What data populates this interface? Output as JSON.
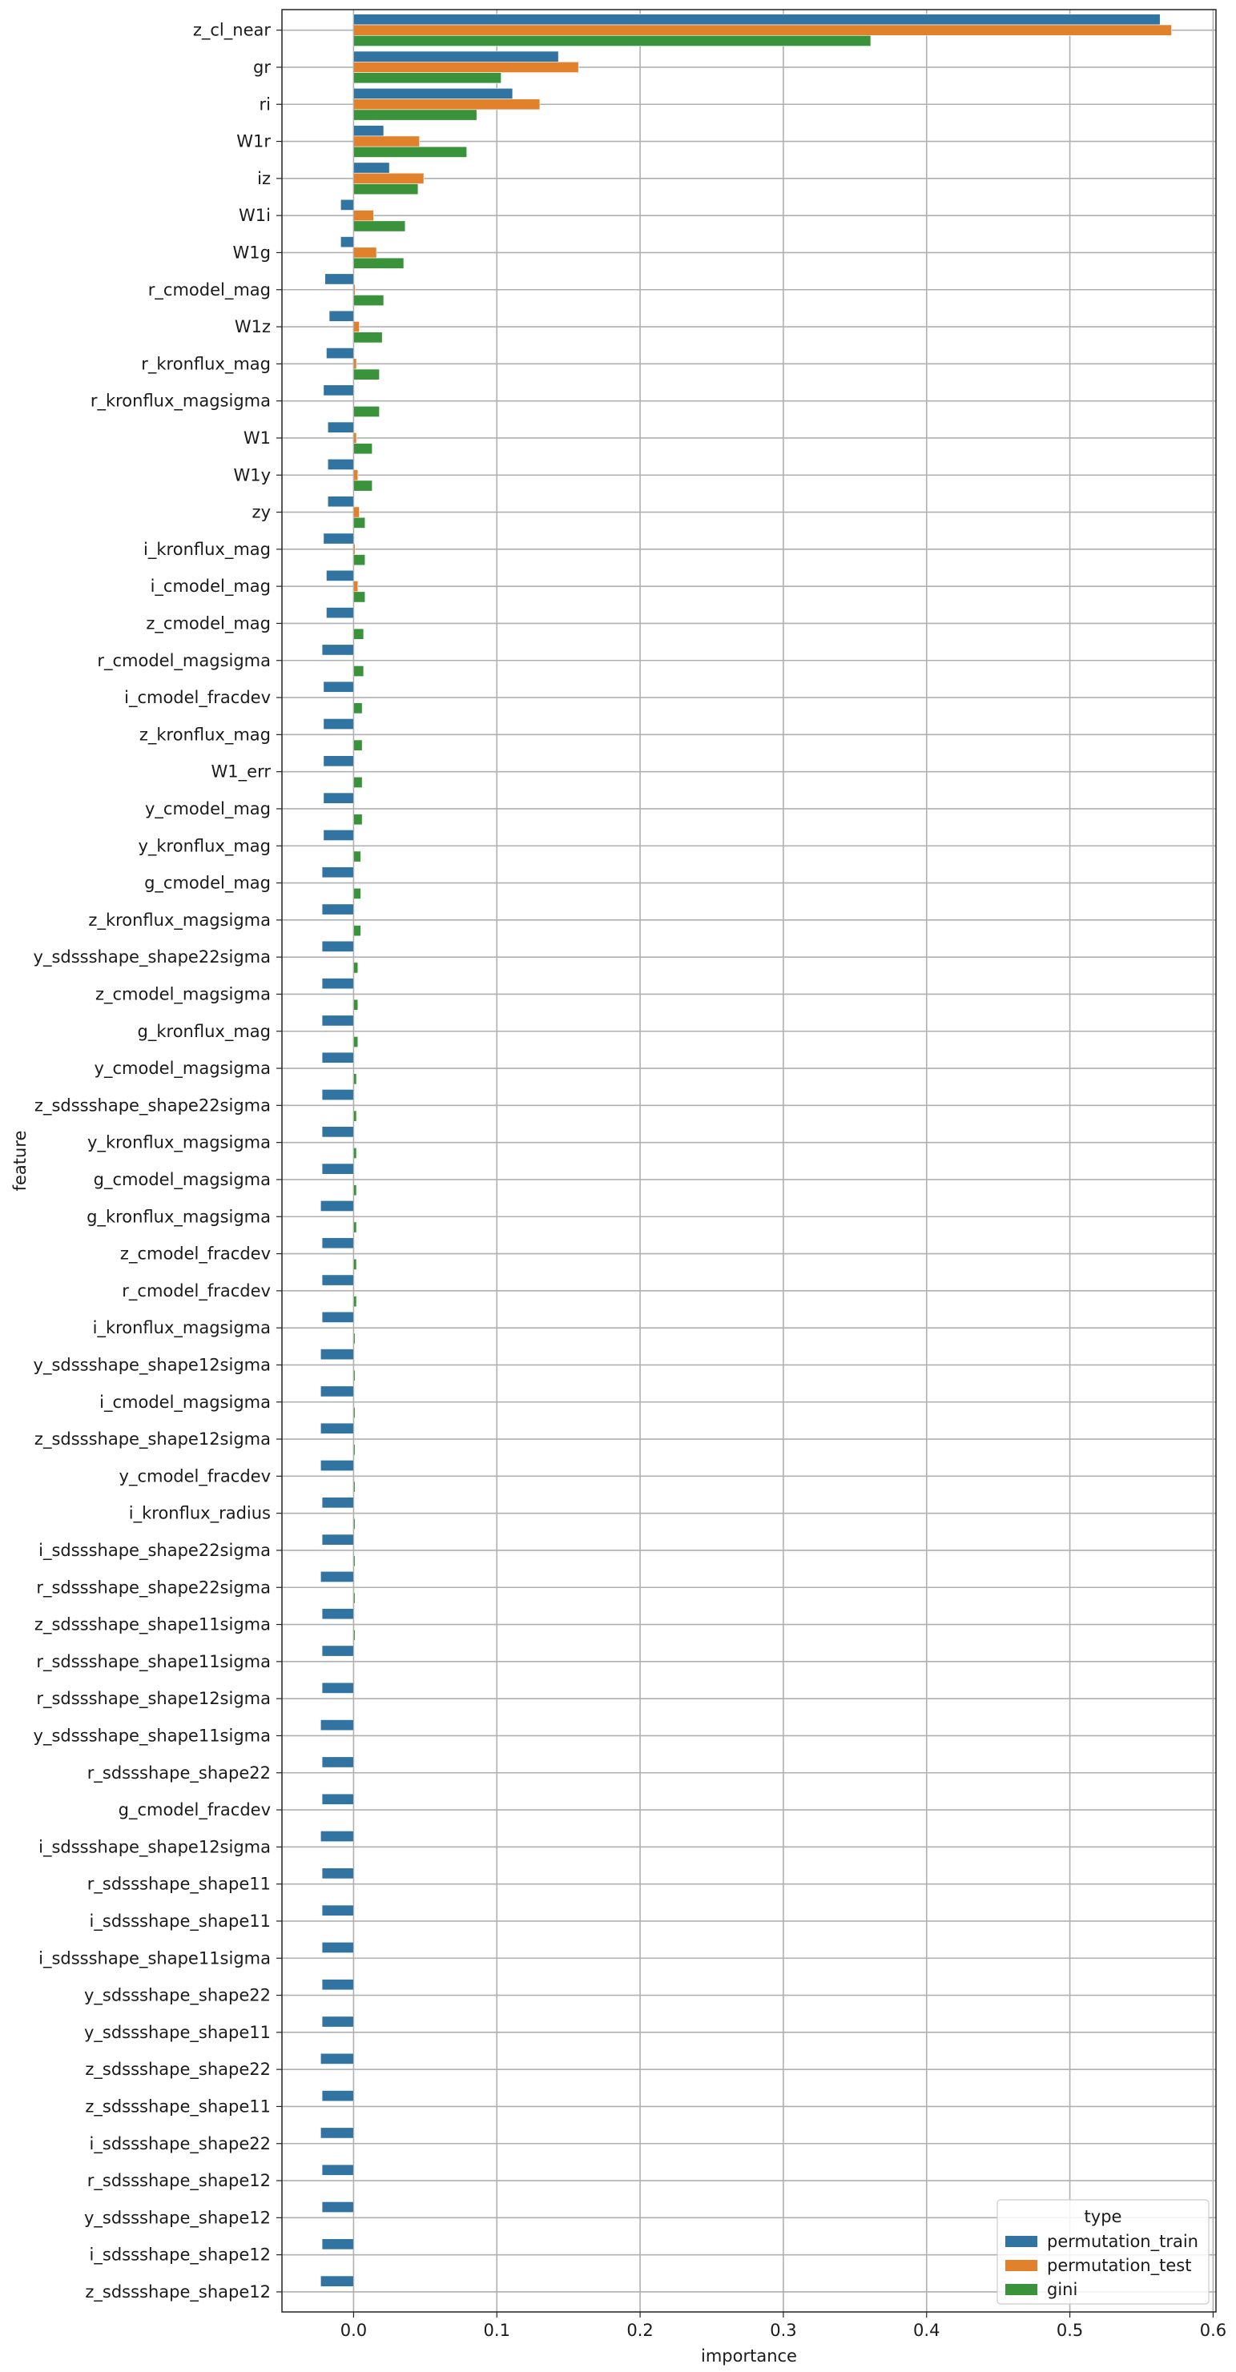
{
  "chart_data": {
    "type": "bar",
    "orientation": "horizontal",
    "xlabel": "importance",
    "ylabel": "feature",
    "xlim": [
      -0.05,
      0.602
    ],
    "xticks": [
      0.0,
      0.1,
      0.2,
      0.3,
      0.4,
      0.5,
      0.6
    ],
    "xtick_labels": [
      "0.0",
      "0.1",
      "0.2",
      "0.3",
      "0.4",
      "0.5",
      "0.6"
    ],
    "grid": true,
    "legend": {
      "title": "type",
      "placement": "lower-right"
    },
    "series": [
      {
        "name": "permutation_train",
        "color": "#3274a1"
      },
      {
        "name": "permutation_test",
        "color": "#e1812c"
      },
      {
        "name": "gini",
        "color": "#3a923a"
      }
    ],
    "categories": [
      "z_cl_near",
      "gr",
      "ri",
      "W1r",
      "iz",
      "W1i",
      "W1g",
      "r_cmodel_mag",
      "W1z",
      "r_kronflux_mag",
      "r_kronflux_magsigma",
      "W1",
      "W1y",
      "zy",
      "i_kronflux_mag",
      "i_cmodel_mag",
      "z_cmodel_mag",
      "r_cmodel_magsigma",
      "i_cmodel_fracdev",
      "z_kronflux_mag",
      "W1_err",
      "y_cmodel_mag",
      "y_kronflux_mag",
      "g_cmodel_mag",
      "z_kronflux_magsigma",
      "y_sdssshape_shape22sigma",
      "z_cmodel_magsigma",
      "g_kronflux_mag",
      "y_cmodel_magsigma",
      "z_sdssshape_shape22sigma",
      "y_kronflux_magsigma",
      "g_cmodel_magsigma",
      "g_kronflux_magsigma",
      "z_cmodel_fracdev",
      "r_cmodel_fracdev",
      "i_kronflux_magsigma",
      "y_sdssshape_shape12sigma",
      "i_cmodel_magsigma",
      "z_sdssshape_shape12sigma",
      "y_cmodel_fracdev",
      "i_kronflux_radius",
      "i_sdssshape_shape22sigma",
      "r_sdssshape_shape22sigma",
      "z_sdssshape_shape11sigma",
      "r_sdssshape_shape11sigma",
      "r_sdssshape_shape12sigma",
      "y_sdssshape_shape11sigma",
      "r_sdssshape_shape22",
      "g_cmodel_fracdev",
      "i_sdssshape_shape12sigma",
      "r_sdssshape_shape11",
      "i_sdssshape_shape11",
      "i_sdssshape_shape11sigma",
      "y_sdssshape_shape22",
      "y_sdssshape_shape11",
      "z_sdssshape_shape22",
      "z_sdssshape_shape11",
      "i_sdssshape_shape22",
      "r_sdssshape_shape12",
      "y_sdssshape_shape12",
      "i_sdssshape_shape12",
      "z_sdssshape_shape12"
    ],
    "values": {
      "permutation_train": [
        0.563,
        0.143,
        0.111,
        0.021,
        0.025,
        -0.009,
        -0.009,
        -0.02,
        -0.017,
        -0.019,
        -0.021,
        -0.018,
        -0.018,
        -0.018,
        -0.021,
        -0.019,
        -0.019,
        -0.022,
        -0.021,
        -0.021,
        -0.021,
        -0.021,
        -0.021,
        -0.022,
        -0.022,
        -0.022,
        -0.022,
        -0.022,
        -0.022,
        -0.022,
        -0.022,
        -0.022,
        -0.023,
        -0.022,
        -0.022,
        -0.022,
        -0.023,
        -0.023,
        -0.023,
        -0.023,
        -0.022,
        -0.022,
        -0.023,
        -0.022,
        -0.022,
        -0.022,
        -0.023,
        -0.022,
        -0.022,
        -0.023,
        -0.022,
        -0.022,
        -0.022,
        -0.022,
        -0.022,
        -0.023,
        -0.022,
        -0.023,
        -0.022,
        -0.022,
        -0.022,
        -0.023
      ],
      "permutation_test": [
        0.571,
        0.157,
        0.13,
        0.046,
        0.049,
        0.014,
        0.016,
        0.001,
        0.004,
        0.002,
        0.0,
        0.002,
        0.003,
        0.004,
        0.001,
        0.003,
        0.0,
        0.0,
        0.0,
        0.0,
        0.0,
        0.0,
        0.0,
        0.0,
        0.0,
        0.0,
        0.0,
        0.0,
        0.0,
        0.0,
        0.0,
        0.0,
        0.0,
        0.0,
        0.0,
        0.0,
        0.0,
        0.0,
        0.0,
        0.0,
        0.0,
        0.0,
        0.0,
        0.0,
        0.0,
        0.0,
        0.0,
        0.0,
        0.0,
        0.0,
        0.0,
        0.0,
        0.0,
        0.0,
        0.0,
        0.0,
        0.0,
        0.0,
        0.0,
        0.0,
        0.0,
        0.0
      ],
      "gini": [
        0.361,
        0.103,
        0.086,
        0.079,
        0.045,
        0.036,
        0.035,
        0.021,
        0.02,
        0.018,
        0.018,
        0.013,
        0.013,
        0.008,
        0.008,
        0.008,
        0.007,
        0.007,
        0.006,
        0.006,
        0.006,
        0.006,
        0.005,
        0.005,
        0.005,
        0.003,
        0.003,
        0.003,
        0.002,
        0.002,
        0.002,
        0.002,
        0.002,
        0.002,
        0.002,
        0.001,
        0.001,
        0.001,
        0.001,
        0.001,
        0.001,
        0.001,
        0.001,
        0.001,
        0.0,
        0.0,
        0.0,
        0.0,
        0.0,
        0.0,
        0.0,
        0.0,
        0.0,
        0.0,
        0.0,
        0.0,
        0.0,
        0.0,
        0.0,
        0.0,
        0.0,
        0.0
      ]
    }
  }
}
